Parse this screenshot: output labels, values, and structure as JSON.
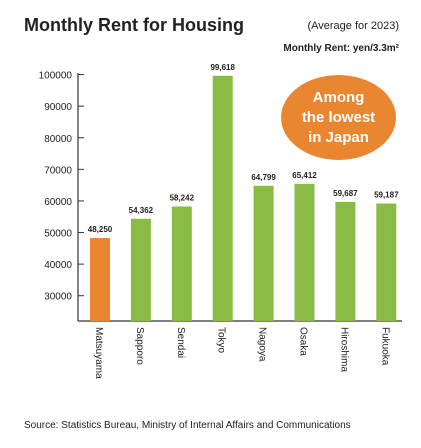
{
  "title": "Monthly Rent for Housing",
  "subtitle": "(Average for 2023)",
  "unit_label": "Monthly Rent: yen/3.3m²",
  "badge_text": "Among\nthe lowest\nin Japan",
  "source": "Source: Statistics Bureau, Ministry of Internal Affairs and Communications",
  "colors": {
    "highlight": "#ea8630",
    "bar": "#8abb45",
    "axis": "#333333"
  },
  "chart_data": {
    "type": "bar",
    "title": "Monthly Rent for Housing",
    "subtitle": "(Average for 2023)",
    "xlabel": "",
    "ylabel": "Monthly Rent: yen/3.3m²",
    "categories": [
      "Matsuyama",
      "Sapporo",
      "Sendai",
      "Tokyo",
      "Nagoya",
      "Osaka",
      "Hiroshima",
      "Fukuoka"
    ],
    "values": [
      48250,
      54362,
      58242,
      99618,
      64799,
      65412,
      59687,
      59187
    ],
    "value_labels": [
      "48,250",
      "54,362",
      "58,242",
      "99,618",
      "64,799",
      "65,412",
      "59,687",
      "59,187"
    ],
    "highlight": "Matsuyama",
    "yticks": [
      30000,
      40000,
      50000,
      60000,
      70000,
      80000,
      90000,
      100000
    ],
    "ylim": [
      22000,
      100500
    ],
    "grid": false,
    "legend": "none"
  }
}
